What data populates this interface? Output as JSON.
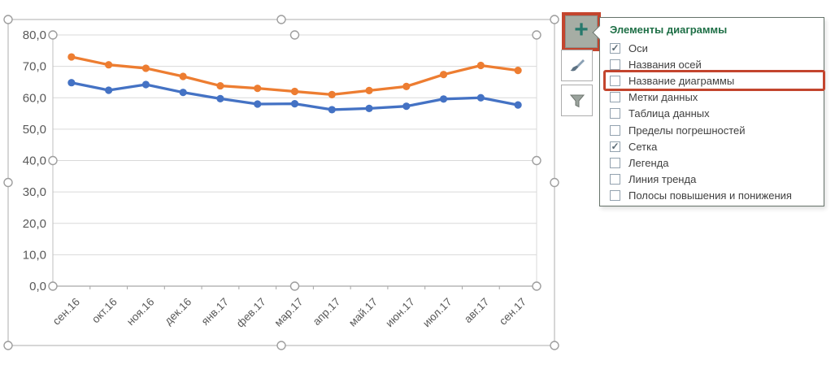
{
  "chart_data": {
    "type": "line",
    "title": "",
    "xlabel": "",
    "ylabel": "",
    "categories": [
      "сен.16",
      "окт.16",
      "ноя.16",
      "дек.16",
      "янв.17",
      "фев.17",
      "мар.17",
      "апр.17",
      "май.17",
      "июн.17",
      "июл.17",
      "авг.17",
      "сен.17"
    ],
    "series": [
      {
        "name": "orange-series",
        "color": "#ED7D31",
        "values": [
          73.0,
          70.5,
          69.4,
          66.8,
          63.8,
          63.0,
          62.0,
          61.0,
          62.3,
          63.6,
          67.4,
          70.3,
          68.7
        ]
      },
      {
        "name": "blue-series",
        "color": "#4472C4",
        "values": [
          64.8,
          62.4,
          64.2,
          61.7,
          59.7,
          58.0,
          58.1,
          56.2,
          56.6,
          57.3,
          59.6,
          60.0,
          57.7
        ]
      }
    ],
    "ylim": [
      0,
      80
    ],
    "ytick_step": 10,
    "ytick_labels": [
      "0,0",
      "10,0",
      "20,0",
      "30,0",
      "40,0",
      "50,0",
      "60,0",
      "70,0",
      "80,0"
    ],
    "grid": true,
    "legend": "none"
  },
  "toolbar": {
    "plus_glyph": "+"
  },
  "menu": {
    "title": "Элементы диаграммы",
    "check_glyph": "✓",
    "items": [
      {
        "key": "axes",
        "label": "Оси",
        "checked": true,
        "highlighted": false
      },
      {
        "key": "axis-titles",
        "label": "Названия осей",
        "checked": false,
        "highlighted": false
      },
      {
        "key": "chart-title",
        "label": "Название диаграммы",
        "checked": false,
        "highlighted": true
      },
      {
        "key": "data-labels",
        "label": "Метки данных",
        "checked": false,
        "highlighted": false
      },
      {
        "key": "data-table",
        "label": "Таблица данных",
        "checked": false,
        "highlighted": false
      },
      {
        "key": "error-bars",
        "label": "Пределы погрешностей",
        "checked": false,
        "highlighted": false
      },
      {
        "key": "gridlines",
        "label": "Сетка",
        "checked": true,
        "highlighted": false
      },
      {
        "key": "legend",
        "label": "Легенда",
        "checked": false,
        "highlighted": false
      },
      {
        "key": "trendline",
        "label": "Линия тренда",
        "checked": false,
        "highlighted": false
      },
      {
        "key": "up-down-bars",
        "label": "Полосы повышения и понижения",
        "checked": false,
        "highlighted": false
      }
    ]
  },
  "colors": {
    "menu_title_green": "#1E6F46",
    "highlight_red": "#C3452E",
    "plus_teal": "#26796C",
    "axis_text": "#595959",
    "gridline": "#D9D9D9",
    "axis_line": "#A6A6A6",
    "frame_line": "#ACACAC",
    "handle_stroke": "#9E9E9E"
  }
}
